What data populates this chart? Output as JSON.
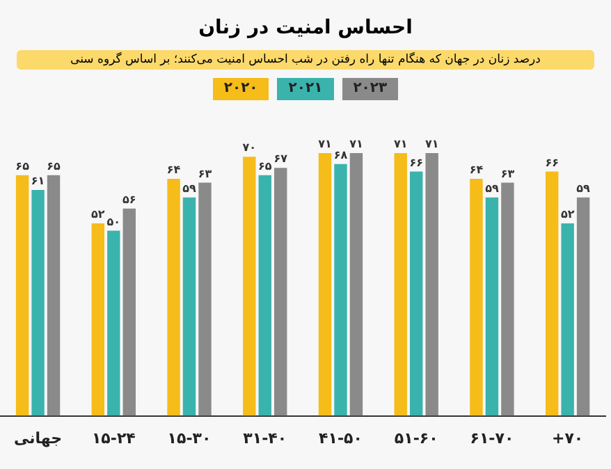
{
  "chart_data": {
    "type": "bar",
    "title": "احساس امنیت در زنان",
    "subtitle": "درصد زنان در جهان که هنگام تنها راه رفتن در شب احساس امنیت می‌کنند؛ بر اساس گروه سنی",
    "categories": [
      "جهانی",
      "۱۵-۲۴",
      "۱۵-۳۰",
      "۳۱-۴۰",
      "۴۱-۵۰",
      "۵۱-۶۰",
      "۶۱-۷۰",
      "+۷۰"
    ],
    "series": [
      {
        "name": "۲۰۲۰",
        "color": "#f6bc1a",
        "values": [
          65,
          52,
          64,
          70,
          71,
          71,
          64,
          66
        ],
        "value_labels": [
          "۶۵",
          "۵۲",
          "۶۴",
          "۷۰",
          "۷۱",
          "۷۱",
          "۶۴",
          "۶۶"
        ]
      },
      {
        "name": "۲۰۲۱",
        "color": "#3bb3ad",
        "values": [
          61,
          50,
          59,
          65,
          68,
          66,
          59,
          52
        ],
        "value_labels": [
          "۶۱",
          "۵۰",
          "۵۹",
          "۶۵",
          "۶۸",
          "۶۶",
          "۵۹",
          "۵۲"
        ]
      },
      {
        "name": "۲۰۲۳",
        "color": "#8a8a8a",
        "values": [
          65,
          56,
          63,
          67,
          71,
          71,
          63,
          59
        ],
        "value_labels": [
          "۶۵",
          "۵۶",
          "۶۳",
          "۶۷",
          "۷۱",
          "۷۱",
          "۶۳",
          "۵۹"
        ]
      }
    ],
    "tick_labels": "x",
    "grid": false,
    "legend": "top"
  }
}
